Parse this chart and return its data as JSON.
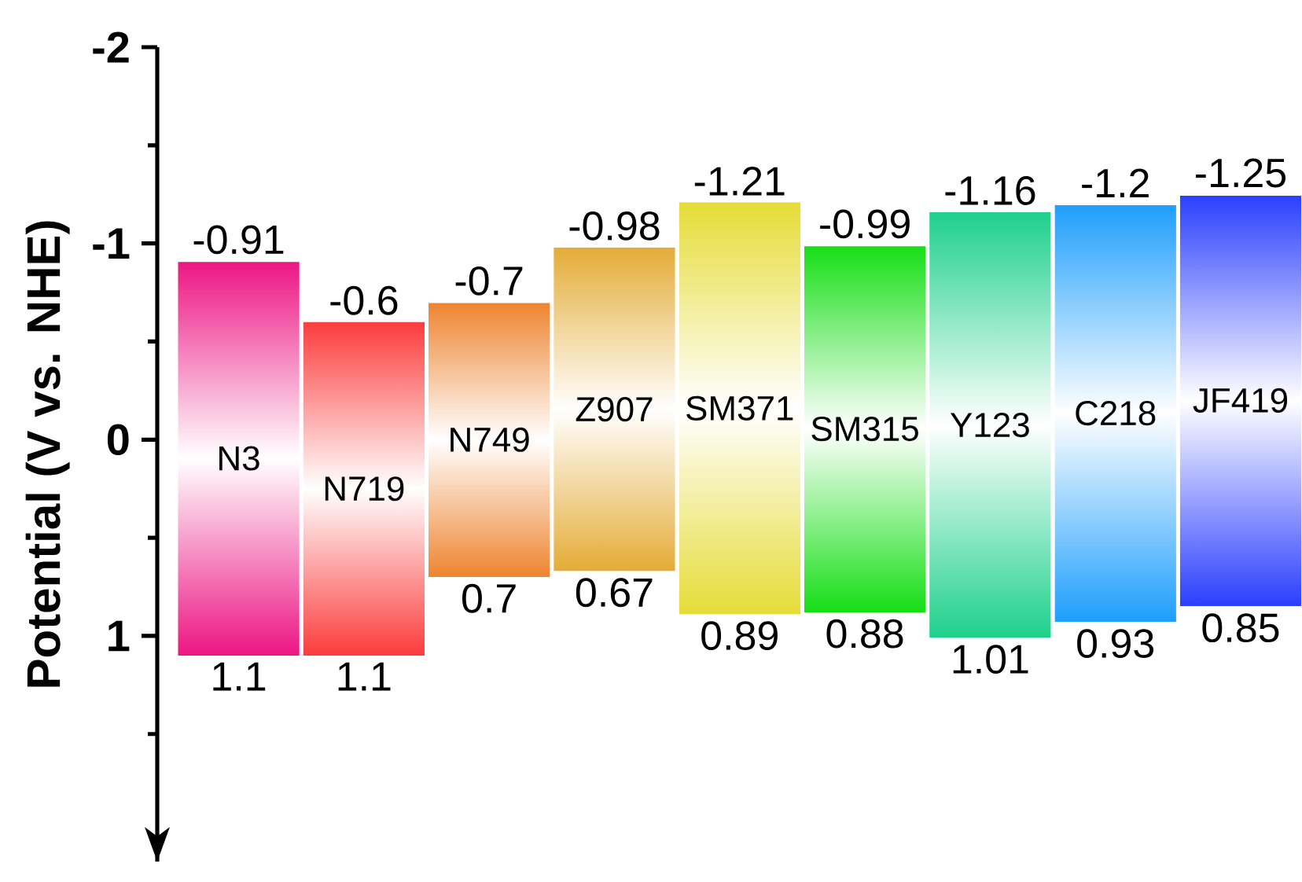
{
  "chart_data": {
    "type": "bar",
    "ylabel": "Potential (V vs. NHE)",
    "categories": [
      "N3",
      "N719",
      "N749",
      "Z907",
      "SM371",
      "SM315",
      "Y123",
      "C218",
      "JF419"
    ],
    "base": [
      -0.91,
      -0.6,
      -0.7,
      -0.98,
      -1.21,
      -0.99,
      -1.16,
      -1.2,
      -1.25
    ],
    "values": [
      2.01,
      1.7,
      1.4,
      1.65,
      2.1,
      1.87,
      2.17,
      2.13,
      2.1
    ],
    "colors": [
      "#ec1583",
      "#fb3c3c",
      "#ee8430",
      "#e4ac38",
      "#e6dc38",
      "#16de16",
      "#1ed08c",
      "#1e9efc",
      "#2a3efc"
    ],
    "ylim": [
      2.15,
      -2
    ],
    "yticks": [
      -2,
      {
        "value": -1.5,
        "label": null
      },
      -1,
      {
        "value": -0.5,
        "label": null
      },
      0,
      {
        "value": 0.5,
        "label": null
      },
      1,
      {
        "value": 1.5,
        "label": null
      }
    ],
    "annotations": [
      {
        "text": "-0.91",
        "x": "N3",
        "y": -0.91
      },
      {
        "text": "1.1",
        "x": "N3",
        "y": 1.1
      },
      {
        "text": "-0.6",
        "x": "N719",
        "y": -0.6
      },
      {
        "text": "1.1",
        "x": "N719",
        "y": 1.1
      },
      {
        "text": "-0.7",
        "x": "N749",
        "y": -0.7
      },
      {
        "text": "0.7",
        "x": "N749",
        "y": 0.7
      },
      {
        "text": "-0.98",
        "x": "Z907",
        "y": -0.98
      },
      {
        "text": "0.67",
        "x": "Z907",
        "y": 0.67
      },
      {
        "text": "-1.21",
        "x": "SM371",
        "y": -1.21
      },
      {
        "text": "0.89",
        "x": "SM371",
        "y": 0.89
      },
      {
        "text": "-0.99",
        "x": "SM315",
        "y": -0.99
      },
      {
        "text": "0.88",
        "x": "SM315",
        "y": 0.88
      },
      {
        "text": "-1.16",
        "x": "Y123",
        "y": -1.16
      },
      {
        "text": "1.01",
        "x": "Y123",
        "y": 1.01
      },
      {
        "text": "-1.2",
        "x": "C218",
        "y": -1.2
      },
      {
        "text": "0.93",
        "x": "C218",
        "y": 0.93
      },
      {
        "text": "-1.25",
        "x": "JF419",
        "y": -1.25
      },
      {
        "text": "0.85",
        "x": "JF419",
        "y": 0.85
      }
    ]
  }
}
